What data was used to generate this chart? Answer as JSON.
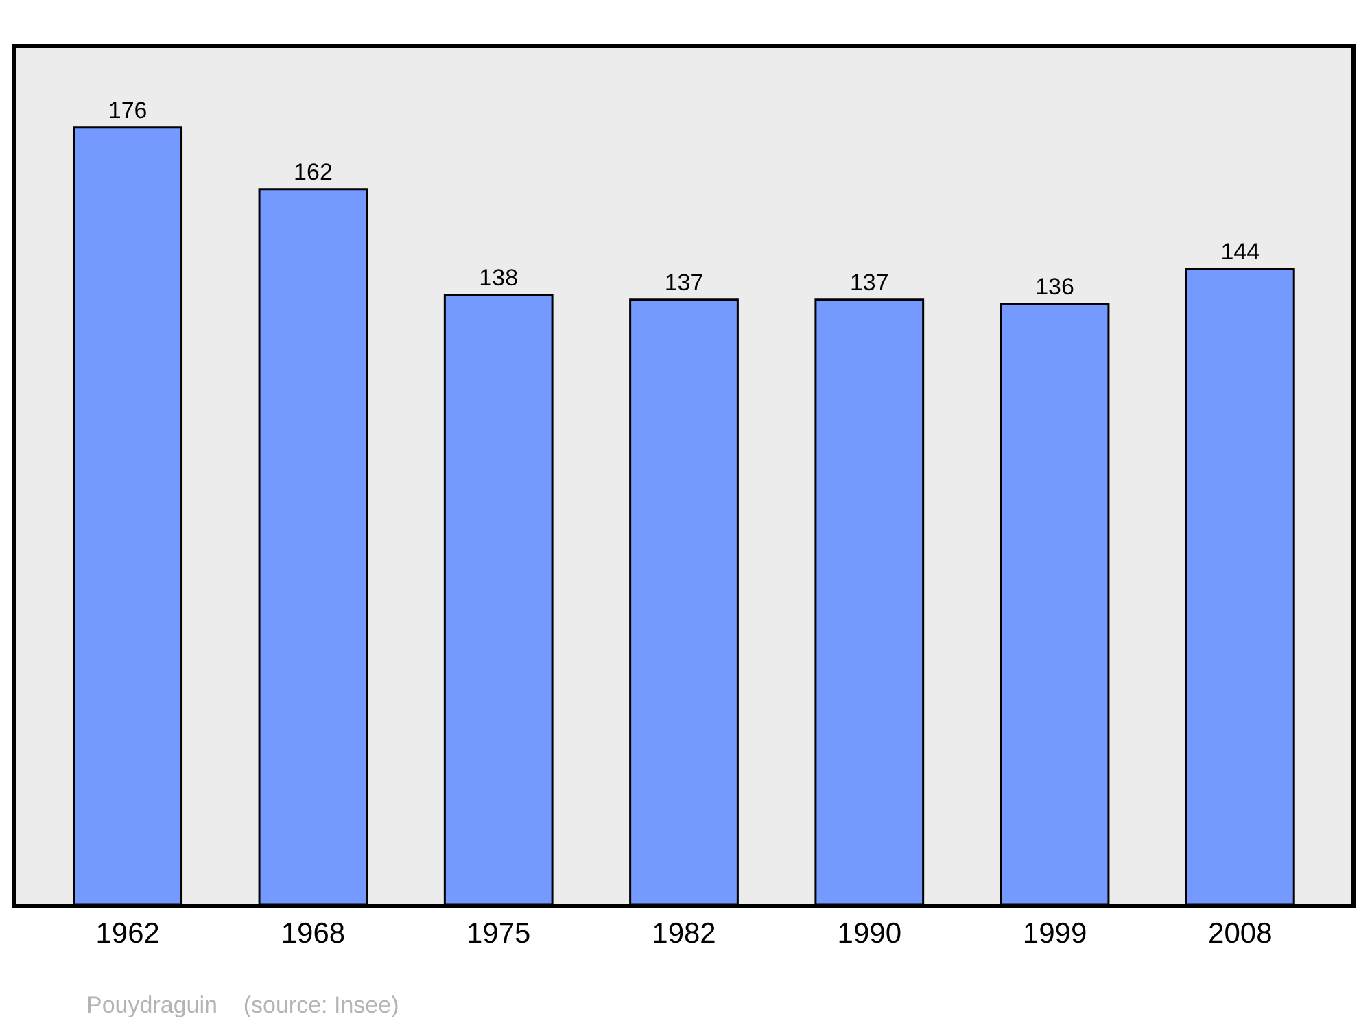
{
  "chart_data": {
    "type": "bar",
    "categories": [
      "1962",
      "1968",
      "1975",
      "1982",
      "1990",
      "1999",
      "2008"
    ],
    "values": [
      176,
      162,
      138,
      137,
      137,
      136,
      144
    ],
    "color": "#7499ff",
    "ylim": [
      0,
      194
    ],
    "data_labels": true,
    "tick_labels": "x",
    "annotations": [
      "Pouydraguin    (source: Insee)"
    ]
  }
}
